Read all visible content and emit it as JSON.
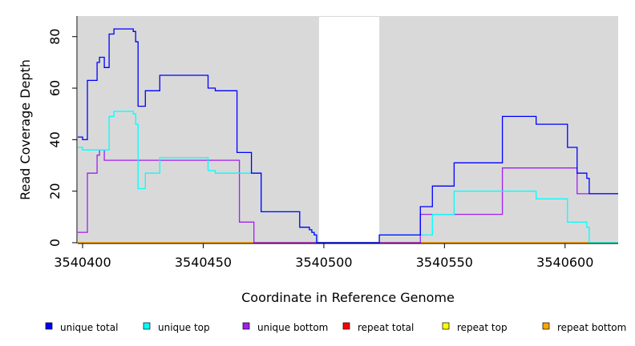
{
  "chart_data": {
    "type": "line",
    "title": "",
    "xlabel": "Coordinate in Reference Genome",
    "ylabel": "Read Coverage Depth",
    "xlim": [
      3540398,
      3540622
    ],
    "ylim": [
      0,
      88
    ],
    "x_ticks": [
      3540400,
      3540450,
      3540500,
      3540550,
      3540600
    ],
    "x_tick_labels": [
      "3540400",
      "3540450",
      "3540500",
      "3540550",
      "3540600"
    ],
    "y_ticks": [
      0,
      20,
      40,
      60,
      80
    ],
    "y_tick_labels": [
      "0",
      "20",
      "40",
      "60",
      "80"
    ],
    "grid": false,
    "panel_background": "#d9d9d9",
    "gap_region": [
      3540498,
      3540523
    ],
    "legend_position": "bottom",
    "series": [
      {
        "name": "unique total",
        "color": "#0000ff",
        "steps": [
          [
            3540398,
            41
          ],
          [
            3540400,
            40
          ],
          [
            3540402,
            63
          ],
          [
            3540406,
            70
          ],
          [
            3540407,
            72
          ],
          [
            3540409,
            68
          ],
          [
            3540411,
            81
          ],
          [
            3540413,
            83
          ],
          [
            3540421,
            82
          ],
          [
            3540422,
            78
          ],
          [
            3540423,
            53
          ],
          [
            3540426,
            59
          ],
          [
            3540432,
            65
          ],
          [
            3540452,
            60
          ],
          [
            3540455,
            59
          ],
          [
            3540464,
            35
          ],
          [
            3540470,
            27
          ],
          [
            3540474,
            12
          ],
          [
            3540490,
            6
          ],
          [
            3540494,
            5
          ],
          [
            3540495,
            4
          ],
          [
            3540496,
            3
          ],
          [
            3540497,
            0
          ],
          [
            3540523,
            3
          ],
          [
            3540540,
            14
          ],
          [
            3540545,
            22
          ],
          [
            3540554,
            31
          ],
          [
            3540574,
            49
          ],
          [
            3540588,
            46
          ],
          [
            3540601,
            37
          ],
          [
            3540605,
            27
          ],
          [
            3540609,
            25
          ],
          [
            3540610,
            19
          ],
          [
            3540622,
            19
          ]
        ]
      },
      {
        "name": "unique top",
        "color": "#00ffff",
        "steps": [
          [
            3540398,
            37
          ],
          [
            3540400,
            36
          ],
          [
            3540407,
            36
          ],
          [
            3540411,
            49
          ],
          [
            3540413,
            51
          ],
          [
            3540421,
            50
          ],
          [
            3540422,
            46
          ],
          [
            3540423,
            21
          ],
          [
            3540426,
            27
          ],
          [
            3540432,
            33
          ],
          [
            3540452,
            28
          ],
          [
            3540455,
            27
          ],
          [
            3540470,
            27
          ],
          [
            3540474,
            12
          ],
          [
            3540490,
            6
          ],
          [
            3540494,
            5
          ],
          [
            3540495,
            4
          ],
          [
            3540496,
            3
          ],
          [
            3540497,
            0
          ],
          [
            3540523,
            3
          ],
          [
            3540540,
            3
          ],
          [
            3540545,
            11
          ],
          [
            3540554,
            20
          ],
          [
            3540588,
            17
          ],
          [
            3540601,
            8
          ],
          [
            3540609,
            6
          ],
          [
            3540610,
            0
          ],
          [
            3540622,
            0
          ]
        ]
      },
      {
        "name": "unique bottom",
        "color": "#a020f0",
        "steps": [
          [
            3540398,
            4
          ],
          [
            3540402,
            27
          ],
          [
            3540406,
            34
          ],
          [
            3540407,
            36
          ],
          [
            3540409,
            32
          ],
          [
            3540465,
            8
          ],
          [
            3540471,
            0
          ],
          [
            3540540,
            11
          ],
          [
            3540574,
            29
          ],
          [
            3540605,
            19
          ],
          [
            3540622,
            19
          ]
        ]
      },
      {
        "name": "repeat total",
        "color": "#ff0000",
        "steps": [
          [
            3540398,
            0
          ],
          [
            3540622,
            0
          ]
        ]
      },
      {
        "name": "repeat top",
        "color": "#ffff00",
        "steps": [
          [
            3540398,
            0
          ],
          [
            3540622,
            0
          ]
        ]
      },
      {
        "name": "repeat bottom",
        "color": "#ffa500",
        "steps": [
          [
            3540398,
            0
          ],
          [
            3540622,
            0
          ]
        ]
      }
    ]
  }
}
